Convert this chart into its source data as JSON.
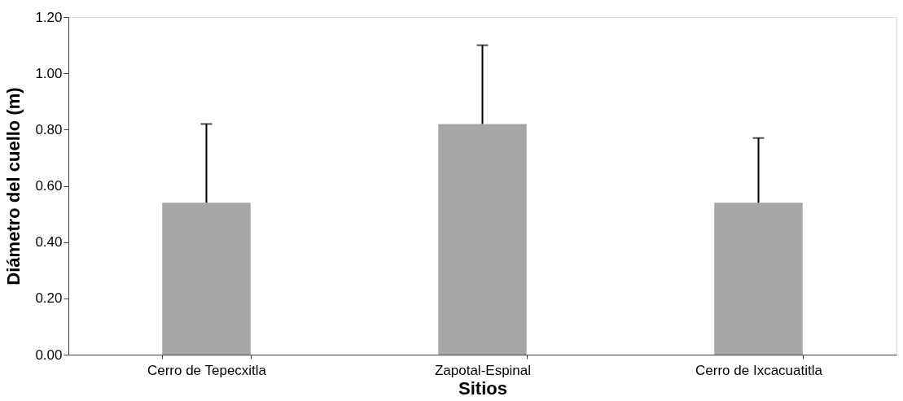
{
  "chart_data": {
    "type": "bar",
    "xlabel": "Sitios",
    "ylabel": "Diámetro del cuello (m)",
    "categories": [
      "Cerro de Tepecxitla",
      "Zapotal-Espinal",
      "Cerro de Ixcacuatitla"
    ],
    "values": [
      0.54,
      0.82,
      0.54
    ],
    "color": "#a6a6a6",
    "errors": [
      [
        0.54,
        0.82
      ],
      [
        0.82,
        1.1
      ],
      [
        0.54,
        0.77
      ]
    ],
    "ylim": [
      0,
      1.2
    ],
    "yticks": [
      {
        "value": 0,
        "label": "0.00"
      },
      {
        "value": 0.2,
        "label": "0.20"
      },
      {
        "value": 0.4,
        "label": "0.40"
      },
      {
        "value": 0.6,
        "label": "0.60"
      },
      {
        "value": 0.8,
        "label": "0.80"
      },
      {
        "value": 1.0,
        "label": "1.00"
      },
      {
        "value": 1.2,
        "label": "1.20"
      }
    ],
    "grid": false
  }
}
